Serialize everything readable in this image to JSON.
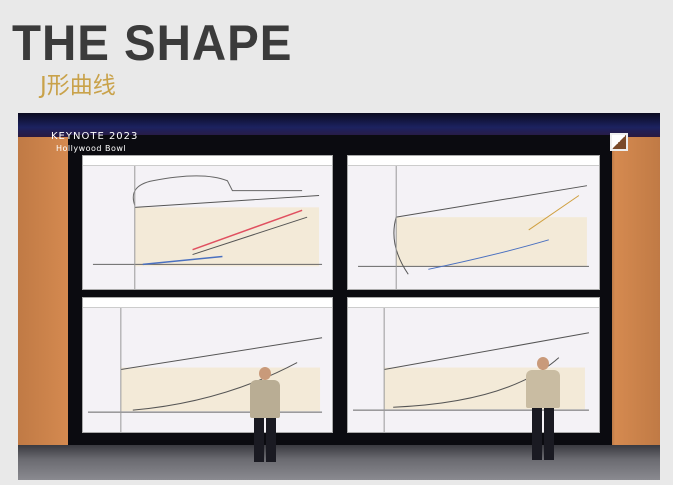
{
  "slide": {
    "title": "THE SHAPE",
    "subtitle": "J形曲线"
  },
  "photo": {
    "event": "KEYNOTE 2023",
    "venue": "Hollywood Bowl"
  },
  "colors": {
    "title": "#3b3b3b",
    "subtitle": "#c9a24a",
    "background": "#e9e9e9"
  }
}
